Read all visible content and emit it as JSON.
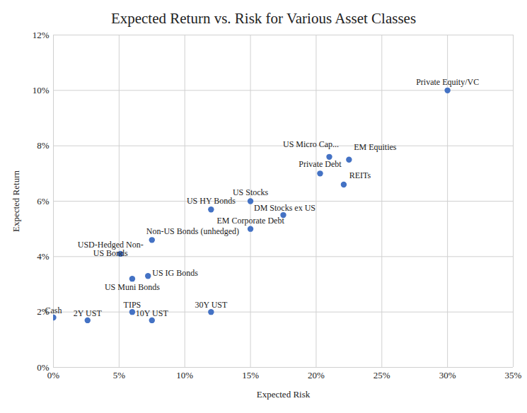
{
  "chart_data": {
    "type": "scatter",
    "title": "Expected Return vs. Risk for Various Asset Classes",
    "x_label": "Expected Risk",
    "y_label": "Expected Return",
    "labels": [
      "Cash",
      "2Y UST",
      "TIPS",
      "10Y UST",
      "30Y UST",
      "US Muni Bonds",
      "US IG Bonds",
      "USD-Hedged Non-US Bonds",
      "Non-US Bonds (unhedged)",
      "US HY Bonds",
      "US Stocks",
      "EM Corporate Debt",
      "DM Stocks ex US",
      "Private Debt",
      "US Micro Cap...",
      "EM Equities",
      "REITs",
      "Private Equity/VC"
    ],
    "x": [
      0,
      2.6,
      6,
      7.5,
      12,
      6,
      7.2,
      5.1,
      7.5,
      12,
      15,
      15,
      17.5,
      20.3,
      21,
      22.5,
      22.1,
      30
    ],
    "values": [
      1.8,
      1.7,
      2.0,
      1.7,
      2.0,
      3.2,
      3.3,
      4.1,
      4.6,
      5.7,
      6.0,
      5.0,
      5.5,
      7.0,
      7.6,
      7.5,
      6.6,
      10.0
    ],
    "color": "#4472c4",
    "marker": "circle",
    "grid": true,
    "xlim": [
      0,
      35
    ],
    "xticks": [
      {
        "value": 0,
        "label": "0%"
      },
      {
        "value": 5,
        "label": "5%"
      },
      {
        "value": 10,
        "label": "10%"
      },
      {
        "value": 15,
        "label": "15%"
      },
      {
        "value": 20,
        "label": "20%"
      },
      {
        "value": 25,
        "label": "25%"
      },
      {
        "value": 30,
        "label": "30%"
      },
      {
        "value": 35,
        "label": "35%"
      }
    ],
    "ylim": [
      0,
      12
    ],
    "yticks": [
      {
        "value": 0,
        "label": "0%"
      },
      {
        "value": 2,
        "label": "2%"
      },
      {
        "value": 4,
        "label": "4%"
      },
      {
        "value": 6,
        "label": "6%"
      },
      {
        "value": 8,
        "label": "8%"
      },
      {
        "value": 10,
        "label": "10%"
      },
      {
        "value": 12,
        "label": "12%"
      }
    ]
  }
}
